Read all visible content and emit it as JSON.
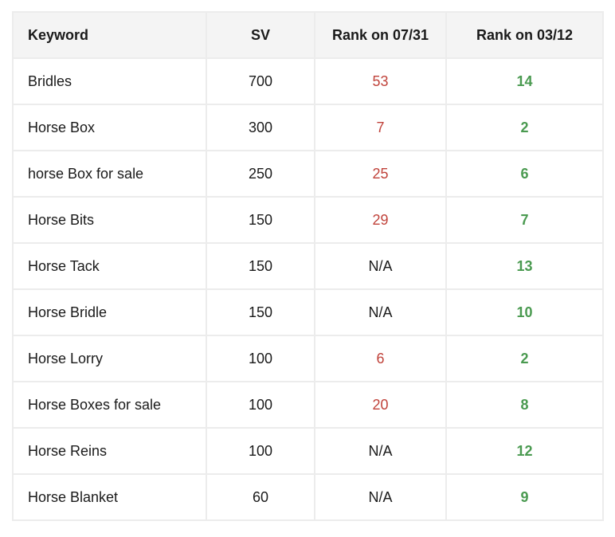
{
  "table": {
    "headers": {
      "keyword": "Keyword",
      "sv": "SV",
      "rank_old": "Rank on 07/31",
      "rank_new": "Rank on 03/12"
    },
    "rows": [
      {
        "keyword": "Bridles",
        "sv": "700",
        "rank_old": "53",
        "rank_new": "14"
      },
      {
        "keyword": "Horse Box",
        "sv": "300",
        "rank_old": "7",
        "rank_new": "2"
      },
      {
        "keyword": "horse Box for sale",
        "sv": "250",
        "rank_old": "25",
        "rank_new": "6"
      },
      {
        "keyword": "Horse Bits",
        "sv": "150",
        "rank_old": "29",
        "rank_new": "7"
      },
      {
        "keyword": "Horse Tack",
        "sv": "150",
        "rank_old": "N/A",
        "rank_new": "13"
      },
      {
        "keyword": "Horse Bridle",
        "sv": "150",
        "rank_old": "N/A",
        "rank_new": "10"
      },
      {
        "keyword": "Horse Lorry",
        "sv": "100",
        "rank_old": "6",
        "rank_new": "2"
      },
      {
        "keyword": "Horse Boxes for sale",
        "sv": "100",
        "rank_old": "20",
        "rank_new": "8"
      },
      {
        "keyword": "Horse Reins",
        "sv": "100",
        "rank_old": "N/A",
        "rank_new": "12"
      },
      {
        "keyword": "Horse Blanket",
        "sv": "60",
        "rank_old": "N/A",
        "rank_new": "9"
      }
    ]
  },
  "colors": {
    "old_rank_text": "#c0423a",
    "new_rank_text": "#4a9a50",
    "header_background": "#f4f4f4",
    "border": "#ececec"
  }
}
